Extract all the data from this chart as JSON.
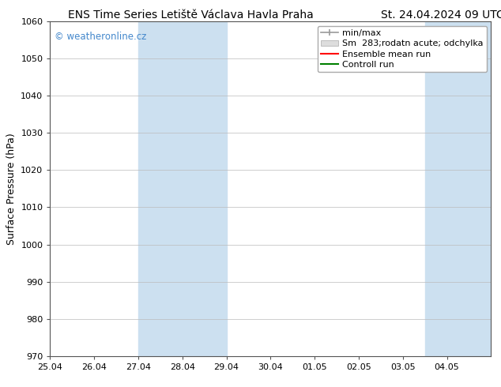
{
  "title_left": "ENS Time Series Letiště Václava Havla Praha",
  "title_right": "St. 24.04.2024 09 UTC",
  "ylabel": "Surface Pressure (hPa)",
  "ylim": [
    970,
    1060
  ],
  "yticks": [
    970,
    980,
    990,
    1000,
    1010,
    1020,
    1030,
    1040,
    1050,
    1060
  ],
  "xlim": [
    0,
    10
  ],
  "xtick_labels": [
    "25.04",
    "26.04",
    "27.04",
    "28.04",
    "29.04",
    "30.04",
    "01.05",
    "02.05",
    "03.05",
    "04.05"
  ],
  "xtick_positions": [
    0,
    1,
    2,
    3,
    4,
    5,
    6,
    7,
    8,
    9
  ],
  "shaded_bands": [
    {
      "xmin": 2.0,
      "xmax": 4.0,
      "color": "#cce0f0",
      "alpha": 1.0
    },
    {
      "xmin": 8.5,
      "xmax": 10.0,
      "color": "#cce0f0",
      "alpha": 1.0
    }
  ],
  "watermark": "© weatheronline.cz",
  "watermark_color": "#4488cc",
  "background_color": "#ffffff",
  "grid_color": "#bbbbbb",
  "title_fontsize": 10,
  "ylabel_fontsize": 9,
  "tick_fontsize": 8,
  "legend_fontsize": 8,
  "spine_color": "#555555"
}
